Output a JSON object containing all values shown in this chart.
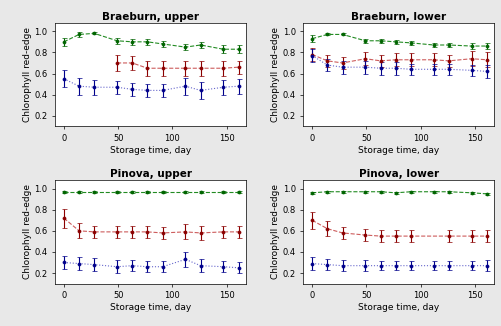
{
  "titles": [
    "Braeburn, upper",
    "Braeburn, lower",
    "Pinova, upper",
    "Pinova, lower"
  ],
  "xlabel": "Storage time, day",
  "ylabel": "Chlorophyll red-edge",
  "xlim": [
    -8,
    168
  ],
  "ylim": [
    0.1,
    1.08
  ],
  "yticks": [
    0.2,
    0.4,
    0.6,
    0.8,
    1.0
  ],
  "xticks": [
    0,
    50,
    100,
    150
  ],
  "colors": {
    "green": "#006400",
    "red": "#8b0000",
    "blue": "#00008b"
  },
  "line_colors": {
    "green": "#228b22",
    "red": "#cd5c5c",
    "blue": "#6666cc"
  },
  "linestyles": {
    "green": "--",
    "red": "--",
    "blue": ":"
  },
  "panels": [
    {
      "name": "Braeburn, upper",
      "green": {
        "x": [
          0,
          14,
          28,
          49,
          63,
          77,
          91,
          112,
          126,
          147,
          161
        ],
        "y": [
          0.9,
          0.97,
          0.98,
          0.91,
          0.9,
          0.9,
          0.88,
          0.85,
          0.87,
          0.83,
          0.83
        ],
        "err": [
          0.04,
          0.02,
          0.01,
          0.03,
          0.03,
          0.03,
          0.03,
          0.03,
          0.03,
          0.04,
          0.04
        ]
      },
      "red": {
        "x": [
          49,
          63,
          77,
          91,
          112,
          126,
          147,
          161
        ],
        "y": [
          0.7,
          0.7,
          0.65,
          0.65,
          0.65,
          0.65,
          0.65,
          0.66
        ],
        "err": [
          0.08,
          0.07,
          0.07,
          0.07,
          0.07,
          0.07,
          0.07,
          0.06
        ]
      },
      "blue": {
        "x": [
          0,
          14,
          28,
          49,
          63,
          77,
          91,
          112,
          126,
          147,
          161
        ],
        "y": [
          0.55,
          0.48,
          0.47,
          0.47,
          0.45,
          0.44,
          0.44,
          0.48,
          0.44,
          0.47,
          0.48
        ],
        "err": [
          0.08,
          0.08,
          0.07,
          0.06,
          0.06,
          0.06,
          0.06,
          0.08,
          0.08,
          0.07,
          0.07
        ]
      }
    },
    {
      "name": "Braeburn, lower",
      "green": {
        "x": [
          0,
          14,
          28,
          49,
          63,
          77,
          91,
          112,
          126,
          147,
          161
        ],
        "y": [
          0.93,
          0.97,
          0.97,
          0.91,
          0.91,
          0.9,
          0.89,
          0.87,
          0.87,
          0.86,
          0.86
        ],
        "err": [
          0.03,
          0.01,
          0.01,
          0.02,
          0.02,
          0.02,
          0.02,
          0.02,
          0.02,
          0.03,
          0.03
        ]
      },
      "red": {
        "x": [
          0,
          14,
          28,
          49,
          63,
          77,
          91,
          112,
          126,
          147,
          161
        ],
        "y": [
          0.78,
          0.72,
          0.7,
          0.74,
          0.72,
          0.73,
          0.73,
          0.73,
          0.72,
          0.74,
          0.73
        ],
        "err": [
          0.06,
          0.06,
          0.06,
          0.06,
          0.06,
          0.06,
          0.06,
          0.06,
          0.06,
          0.07,
          0.07
        ]
      },
      "blue": {
        "x": [
          0,
          14,
          28,
          49,
          63,
          77,
          91,
          112,
          126,
          147,
          161
        ],
        "y": [
          0.77,
          0.68,
          0.66,
          0.66,
          0.65,
          0.65,
          0.64,
          0.64,
          0.64,
          0.63,
          0.62
        ],
        "err": [
          0.06,
          0.06,
          0.06,
          0.06,
          0.06,
          0.06,
          0.05,
          0.05,
          0.05,
          0.05,
          0.06
        ]
      }
    },
    {
      "name": "Pinova, upper",
      "green": {
        "x": [
          0,
          14,
          28,
          49,
          63,
          77,
          91,
          112,
          126,
          147,
          161
        ],
        "y": [
          0.97,
          0.97,
          0.97,
          0.97,
          0.97,
          0.97,
          0.97,
          0.97,
          0.97,
          0.97,
          0.97
        ],
        "err": [
          0.01,
          0.01,
          0.01,
          0.01,
          0.01,
          0.01,
          0.01,
          0.01,
          0.01,
          0.01,
          0.01
        ]
      },
      "red": {
        "x": [
          0,
          14,
          28,
          49,
          63,
          77,
          91,
          112,
          126,
          147,
          161
        ],
        "y": [
          0.72,
          0.6,
          0.59,
          0.59,
          0.59,
          0.59,
          0.58,
          0.59,
          0.58,
          0.59,
          0.59
        ],
        "err": [
          0.09,
          0.07,
          0.06,
          0.06,
          0.06,
          0.06,
          0.06,
          0.07,
          0.07,
          0.06,
          0.06
        ]
      },
      "blue": {
        "x": [
          0,
          14,
          28,
          49,
          63,
          77,
          91,
          112,
          126,
          147,
          161
        ],
        "y": [
          0.3,
          0.29,
          0.28,
          0.26,
          0.27,
          0.26,
          0.26,
          0.33,
          0.27,
          0.26,
          0.25
        ],
        "err": [
          0.06,
          0.06,
          0.06,
          0.06,
          0.05,
          0.05,
          0.05,
          0.07,
          0.06,
          0.05,
          0.05
        ]
      }
    },
    {
      "name": "Pinova, lower",
      "green": {
        "x": [
          0,
          14,
          28,
          49,
          63,
          77,
          91,
          112,
          126,
          147,
          161
        ],
        "y": [
          0.96,
          0.97,
          0.97,
          0.97,
          0.97,
          0.96,
          0.97,
          0.97,
          0.97,
          0.96,
          0.95
        ],
        "err": [
          0.01,
          0.01,
          0.01,
          0.01,
          0.01,
          0.01,
          0.01,
          0.01,
          0.01,
          0.01,
          0.01
        ]
      },
      "red": {
        "x": [
          0,
          14,
          28,
          49,
          63,
          77,
          91,
          126,
          147,
          161
        ],
        "y": [
          0.7,
          0.62,
          0.58,
          0.56,
          0.55,
          0.55,
          0.55,
          0.55,
          0.55,
          0.55
        ],
        "err": [
          0.08,
          0.07,
          0.06,
          0.06,
          0.06,
          0.06,
          0.06,
          0.06,
          0.06,
          0.06
        ]
      },
      "blue": {
        "x": [
          0,
          14,
          28,
          49,
          63,
          77,
          91,
          112,
          126,
          147,
          161
        ],
        "y": [
          0.29,
          0.28,
          0.27,
          0.27,
          0.27,
          0.27,
          0.27,
          0.27,
          0.27,
          0.27,
          0.27
        ],
        "err": [
          0.06,
          0.05,
          0.05,
          0.05,
          0.04,
          0.04,
          0.04,
          0.04,
          0.04,
          0.04,
          0.05
        ]
      }
    }
  ],
  "bg_color": "#e8e8e8",
  "panel_bg": "#ffffff",
  "title_fontsize": 7.5,
  "label_fontsize": 6.5,
  "tick_fontsize": 6
}
